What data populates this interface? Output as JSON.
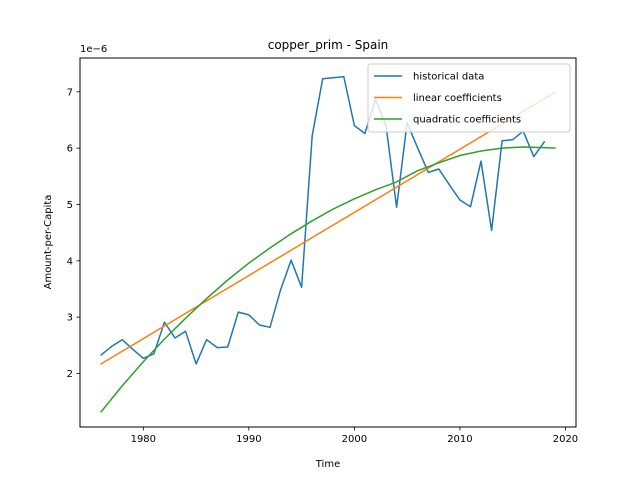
{
  "chart_data": {
    "type": "line",
    "title": "copper_prim - Spain",
    "xlabel": "Time",
    "ylabel": "Amount-per-Capita",
    "y_offset_label": "1e−6",
    "xlim": [
      1974,
      2021
    ],
    "ylim": [
      1.05,
      7.6
    ],
    "x_ticks": [
      1980,
      1990,
      2000,
      2010,
      2020
    ],
    "y_ticks": [
      2,
      3,
      4,
      5,
      6,
      7
    ],
    "legend_position": "top-right",
    "series": [
      {
        "name": "historical data",
        "color": "#1f77b4",
        "x": [
          1976,
          1977,
          1978,
          1979,
          1980,
          1981,
          1982,
          1983,
          1984,
          1985,
          1986,
          1987,
          1988,
          1989,
          1990,
          1991,
          1992,
          1993,
          1994,
          1995,
          1996,
          1997,
          1998,
          1999,
          2000,
          2001,
          2002,
          2003,
          2004,
          2005,
          2006,
          2007,
          2008,
          2009,
          2010,
          2011,
          2012,
          2013,
          2014,
          2015,
          2016,
          2017,
          2018
        ],
        "y": [
          2.33,
          2.48,
          2.6,
          2.43,
          2.27,
          2.35,
          2.91,
          2.63,
          2.75,
          2.17,
          2.6,
          2.46,
          2.47,
          3.09,
          3.04,
          2.86,
          2.82,
          3.48,
          4.01,
          3.53,
          6.22,
          7.23,
          7.25,
          7.27,
          6.4,
          6.26,
          6.87,
          6.4,
          4.95,
          6.45,
          6.0,
          5.57,
          5.63,
          5.35,
          5.08,
          4.96,
          5.77,
          4.54,
          6.13,
          6.15,
          6.3,
          5.85,
          6.11
        ]
      },
      {
        "name": "linear coefficients",
        "color": "#ff7f0e",
        "x": [
          1976,
          2019
        ],
        "y": [
          2.17,
          6.99
        ]
      },
      {
        "name": "quadratic coefficients",
        "color": "#2ca02c",
        "x": [
          1976,
          1978,
          1980,
          1982,
          1984,
          1986,
          1988,
          1990,
          1992,
          1994,
          1996,
          1998,
          2000,
          2002,
          2004,
          2006,
          2008,
          2010,
          2012,
          2014,
          2016,
          2018,
          2019
        ],
        "y": [
          1.32,
          1.78,
          2.21,
          2.61,
          2.98,
          3.33,
          3.66,
          3.96,
          4.23,
          4.48,
          4.71,
          4.92,
          5.1,
          5.26,
          5.4,
          5.6,
          5.74,
          5.87,
          5.95,
          6.0,
          6.02,
          6.01,
          6.0
        ]
      }
    ]
  }
}
